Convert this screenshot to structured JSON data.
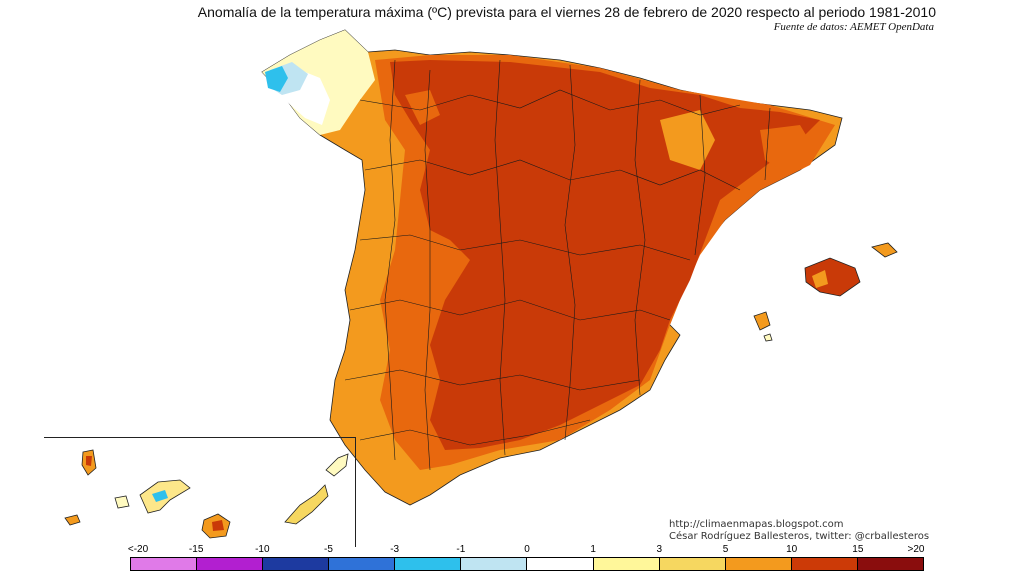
{
  "header": {
    "title": "Anomalía de la temperatura máxima (ºC) prevista para el viernes 28 de febrero de 2020 respecto al periodo 1981-2010",
    "source": "Fuente de datos: AEMET OpenData"
  },
  "credits": {
    "blog": "http://climaenmapas.blogspot.com",
    "author": "César Rodríguez Ballesteros, twitter: @crballesteros"
  },
  "legend": {
    "labels": [
      "<-20",
      "-15",
      "-10",
      "-5",
      "-3",
      "-1",
      "0",
      "1",
      "3",
      "5",
      "10",
      "15",
      ">20"
    ],
    "colors": [
      "#e07ae8",
      "#b21fd0",
      "#1d3aa0",
      "#2f72d8",
      "#2ec0ec",
      "#bfe4f2",
      "#ffffff",
      "#fff79a",
      "#f6d760",
      "#f39a1e",
      "#cc3a07",
      "#8a0d0d",
      "#6b3607"
    ]
  },
  "map": {
    "colors": {
      "dark_red": "#c93a08",
      "dark_orange": "#e8680e",
      "orange": "#f39a1e",
      "yellow": "#fde78a",
      "pale": "#fffac0",
      "white": "#ffffff",
      "light_blue": "#bfe4f2",
      "blue": "#2ec0ec",
      "border": "#1a1a1a"
    }
  }
}
